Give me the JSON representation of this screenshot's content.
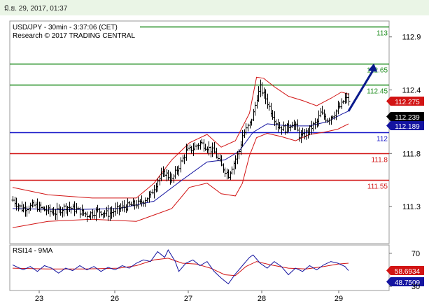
{
  "header": {
    "timestamp": "มิ.ย. 29, 2017, 01:37"
  },
  "chart_data": {
    "type": "line",
    "title": "USD/JPY - 30min - 3:37:06 (CET)",
    "subtitle": "Research © 2017 TRADING CENTRAL",
    "price_axis": {
      "ylim": [
        110.95,
        113.05
      ],
      "ticks": [
        "112.9",
        "112.4",
        "111.8",
        "111.3"
      ],
      "tick_values": [
        112.9,
        112.4,
        111.8,
        111.3
      ]
    },
    "x_ticks": [
      "23",
      "26",
      "27",
      "28",
      "29"
    ],
    "levels": [
      {
        "label": "113",
        "value": 113.0,
        "color": "#1e8c1e"
      },
      {
        "label": "112.65",
        "value": 112.65,
        "color": "#1e8c1e"
      },
      {
        "label": "112.45",
        "value": 112.45,
        "color": "#1e8c1e"
      },
      {
        "label": "112",
        "value": 112.0,
        "color": "#1414c8"
      },
      {
        "label": "111.8",
        "value": 111.8,
        "color": "#d21414"
      },
      {
        "label": "111.55",
        "value": 111.55,
        "color": "#d21414"
      }
    ],
    "price_badges": [
      {
        "label": "112.275",
        "value": 112.275,
        "color": "#d21414"
      },
      {
        "label": "112.239",
        "value": 112.239,
        "color": "#000000"
      },
      {
        "label": "112.189",
        "value": 112.189,
        "color": "#1414a0"
      }
    ],
    "price_path": [
      [
        0,
        111.36
      ],
      [
        5,
        111.28
      ],
      [
        12,
        111.31
      ],
      [
        18,
        111.27
      ],
      [
        24,
        111.24
      ],
      [
        30,
        111.3
      ],
      [
        36,
        111.27
      ],
      [
        42,
        111.22
      ],
      [
        48,
        111.26
      ],
      [
        54,
        111.23
      ],
      [
        60,
        111.28
      ],
      [
        66,
        111.31
      ],
      [
        72,
        111.33
      ],
      [
        78,
        111.41
      ],
      [
        82,
        111.55
      ],
      [
        86,
        111.62
      ],
      [
        90,
        111.55
      ],
      [
        94,
        111.68
      ],
      [
        98,
        111.82
      ],
      [
        102,
        111.85
      ],
      [
        106,
        111.9
      ],
      [
        110,
        111.86
      ],
      [
        114,
        111.81
      ],
      [
        118,
        111.68
      ],
      [
        122,
        111.6
      ],
      [
        126,
        111.75
      ],
      [
        128,
        111.82
      ],
      [
        130,
        111.97
      ],
      [
        134,
        112.08
      ],
      [
        136,
        112.18
      ],
      [
        138,
        112.33
      ],
      [
        140,
        112.42
      ],
      [
        143,
        112.32
      ],
      [
        146,
        112.2
      ],
      [
        150,
        112.06
      ],
      [
        154,
        112.03
      ],
      [
        158,
        112.09
      ],
      [
        160,
        112.05
      ],
      [
        162,
        111.97
      ],
      [
        164,
        111.96
      ],
      [
        168,
        112.03
      ],
      [
        172,
        112.1
      ],
      [
        174,
        112.18
      ],
      [
        178,
        112.12
      ],
      [
        182,
        112.18
      ],
      [
        186,
        112.26
      ],
      [
        188,
        112.32
      ],
      [
        190,
        112.3
      ]
    ],
    "upper_band": [
      [
        0,
        111.48
      ],
      [
        20,
        111.41
      ],
      [
        45,
        111.38
      ],
      [
        70,
        111.38
      ],
      [
        80,
        111.52
      ],
      [
        90,
        111.74
      ],
      [
        100,
        111.9
      ],
      [
        110,
        111.98
      ],
      [
        118,
        111.86
      ],
      [
        126,
        111.92
      ],
      [
        134,
        112.18
      ],
      [
        138,
        112.52
      ],
      [
        142,
        112.51
      ],
      [
        148,
        112.43
      ],
      [
        156,
        112.34
      ],
      [
        164,
        112.3
      ],
      [
        172,
        112.25
      ],
      [
        180,
        112.32
      ],
      [
        186,
        112.38
      ],
      [
        190,
        112.36
      ]
    ],
    "lower_band": [
      [
        0,
        111.1
      ],
      [
        20,
        111.16
      ],
      [
        45,
        111.18
      ],
      [
        70,
        111.16
      ],
      [
        80,
        111.22
      ],
      [
        90,
        111.28
      ],
      [
        100,
        111.48
      ],
      [
        110,
        111.52
      ],
      [
        118,
        111.42
      ],
      [
        126,
        111.4
      ],
      [
        130,
        111.52
      ],
      [
        134,
        111.78
      ],
      [
        138,
        111.95
      ],
      [
        144,
        111.99
      ],
      [
        152,
        111.96
      ],
      [
        160,
        111.92
      ],
      [
        168,
        111.98
      ],
      [
        176,
        112.0
      ],
      [
        184,
        112.03
      ],
      [
        190,
        112.08
      ]
    ],
    "ma_line": [
      [
        0,
        111.28
      ],
      [
        30,
        111.27
      ],
      [
        60,
        111.28
      ],
      [
        80,
        111.35
      ],
      [
        95,
        111.54
      ],
      [
        110,
        111.72
      ],
      [
        120,
        111.74
      ],
      [
        128,
        111.82
      ],
      [
        136,
        112.0
      ],
      [
        144,
        112.08
      ],
      [
        156,
        112.06
      ],
      [
        168,
        112.06
      ],
      [
        178,
        112.1
      ],
      [
        186,
        112.17
      ],
      [
        190,
        112.2
      ]
    ],
    "arrow": {
      "from": [
        190,
        112.2
      ],
      "to": [
        198,
        112.65
      ]
    },
    "rsi_panel": {
      "title": "RSI14 - 9MA",
      "ylim": [
        25,
        80
      ],
      "ticks": [
        "70",
        "30"
      ],
      "tick_values": [
        70,
        30
      ],
      "badges": [
        {
          "label": "58.6934",
          "value": 58.6934,
          "color": "#d21414"
        },
        {
          "label": "48.7509",
          "value": 48.7509,
          "color": "#1414a0"
        }
      ],
      "rsi": [
        [
          0,
          56
        ],
        [
          6,
          50
        ],
        [
          10,
          54
        ],
        [
          14,
          48
        ],
        [
          18,
          55
        ],
        [
          22,
          52
        ],
        [
          26,
          46
        ],
        [
          30,
          52
        ],
        [
          34,
          49
        ],
        [
          38,
          55
        ],
        [
          42,
          50
        ],
        [
          46,
          54
        ],
        [
          50,
          48
        ],
        [
          54,
          53
        ],
        [
          58,
          50
        ],
        [
          62,
          55
        ],
        [
          66,
          52
        ],
        [
          70,
          58
        ],
        [
          74,
          62
        ],
        [
          78,
          60
        ],
        [
          82,
          72
        ],
        [
          86,
          65
        ],
        [
          88,
          74
        ],
        [
          92,
          60
        ],
        [
          94,
          48
        ],
        [
          98,
          58
        ],
        [
          102,
          62
        ],
        [
          106,
          55
        ],
        [
          110,
          60
        ],
        [
          114,
          48
        ],
        [
          118,
          40
        ],
        [
          122,
          33
        ],
        [
          126,
          45
        ],
        [
          130,
          55
        ],
        [
          134,
          65
        ],
        [
          136,
          68
        ],
        [
          140,
          58
        ],
        [
          144,
          52
        ],
        [
          148,
          60
        ],
        [
          152,
          54
        ],
        [
          156,
          44
        ],
        [
          160,
          52
        ],
        [
          164,
          48
        ],
        [
          168,
          55
        ],
        [
          172,
          50
        ],
        [
          176,
          56
        ],
        [
          180,
          60
        ],
        [
          184,
          58
        ],
        [
          188,
          54
        ],
        [
          190,
          49
        ]
      ],
      "rsi_ma": [
        [
          0,
          52
        ],
        [
          20,
          51
        ],
        [
          40,
          51
        ],
        [
          60,
          52
        ],
        [
          70,
          55
        ],
        [
          80,
          62
        ],
        [
          88,
          64
        ],
        [
          96,
          58
        ],
        [
          104,
          57
        ],
        [
          112,
          52
        ],
        [
          120,
          44
        ],
        [
          126,
          43
        ],
        [
          132,
          54
        ],
        [
          138,
          60
        ],
        [
          146,
          56
        ],
        [
          156,
          52
        ],
        [
          166,
          51
        ],
        [
          176,
          54
        ],
        [
          184,
          57
        ],
        [
          190,
          58
        ]
      ]
    }
  }
}
